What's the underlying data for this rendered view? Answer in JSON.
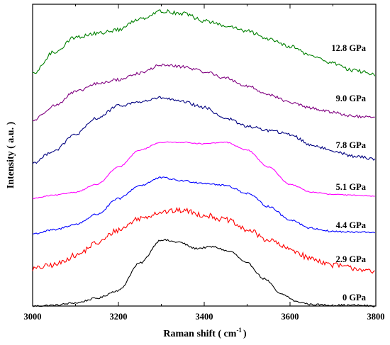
{
  "chart_data": {
    "type": "line",
    "title": "",
    "xlabel": "Raman shift ( cm",
    "xlabel_sup": "-1",
    "xlabel_tail": ")",
    "ylabel": "Intensity ( a.u. )",
    "xlim": [
      3000,
      3800
    ],
    "x_ticks": [
      3000,
      3200,
      3400,
      3600,
      3800
    ],
    "x_tick_labels": [
      "3000",
      "3200",
      "3400",
      "3600",
      "3800"
    ],
    "y_ticks_shown": false,
    "grid": false,
    "legend": "inline labels at right",
    "series": [
      {
        "name": "0 GPa",
        "color": "#000000",
        "noise": 0.012,
        "x": [
          3000,
          3050,
          3100,
          3150,
          3200,
          3250,
          3300,
          3340,
          3380,
          3420,
          3460,
          3500,
          3540,
          3580,
          3620,
          3650,
          3700,
          3750,
          3800
        ],
        "y": [
          0.0,
          0.01,
          0.04,
          0.1,
          0.2,
          0.55,
          0.85,
          0.82,
          0.74,
          0.76,
          0.7,
          0.55,
          0.35,
          0.15,
          0.05,
          0.02,
          0.01,
          0.01,
          0.0
        ]
      },
      {
        "name": "2.9 GPa",
        "color": "#ff0000",
        "noise": 0.035,
        "x": [
          3000,
          3050,
          3100,
          3150,
          3200,
          3250,
          3300,
          3350,
          3400,
          3450,
          3500,
          3550,
          3600,
          3650,
          3700,
          3750,
          3800
        ],
        "y": [
          0.05,
          0.1,
          0.22,
          0.38,
          0.55,
          0.7,
          0.78,
          0.8,
          0.74,
          0.68,
          0.55,
          0.42,
          0.3,
          0.18,
          0.1,
          0.06,
          0.0
        ]
      },
      {
        "name": "4.4 GPa",
        "color": "#0000ff",
        "noise": 0.012,
        "x": [
          3000,
          3050,
          3100,
          3150,
          3200,
          3250,
          3300,
          3350,
          3400,
          3450,
          3500,
          3550,
          3600,
          3650,
          3700,
          3750,
          3800
        ],
        "y": [
          0.0,
          0.05,
          0.12,
          0.25,
          0.45,
          0.62,
          0.72,
          0.68,
          0.65,
          0.62,
          0.52,
          0.35,
          0.18,
          0.07,
          0.03,
          0.02,
          0.02
        ]
      },
      {
        "name": "5.1 GPa",
        "color": "#ff00ff",
        "noise": 0.006,
        "x": [
          3000,
          3050,
          3100,
          3150,
          3200,
          3250,
          3300,
          3350,
          3400,
          3450,
          3500,
          3550,
          3600,
          3650,
          3700,
          3750,
          3800
        ],
        "y": [
          0.0,
          0.04,
          0.08,
          0.18,
          0.4,
          0.62,
          0.72,
          0.72,
          0.7,
          0.72,
          0.62,
          0.4,
          0.18,
          0.08,
          0.05,
          0.04,
          0.03
        ]
      },
      {
        "name": "7.8 GPa",
        "color": "#000080",
        "noise": 0.018,
        "x": [
          3000,
          3050,
          3100,
          3150,
          3200,
          3250,
          3300,
          3350,
          3400,
          3450,
          3500,
          3550,
          3600,
          3650,
          3700,
          3750,
          3800
        ],
        "y": [
          0.0,
          0.15,
          0.35,
          0.55,
          0.7,
          0.75,
          0.8,
          0.75,
          0.68,
          0.55,
          0.45,
          0.4,
          0.35,
          0.22,
          0.15,
          0.08,
          0.05
        ]
      },
      {
        "name": "9.0 GPa",
        "color": "#800080",
        "noise": 0.018,
        "x": [
          3000,
          3050,
          3100,
          3150,
          3200,
          3250,
          3300,
          3350,
          3400,
          3450,
          3500,
          3550,
          3600,
          3650,
          3700,
          3750,
          3800
        ],
        "y": [
          0.0,
          0.18,
          0.35,
          0.45,
          0.5,
          0.58,
          0.68,
          0.66,
          0.6,
          0.52,
          0.42,
          0.32,
          0.22,
          0.15,
          0.1,
          0.05,
          0.03
        ]
      },
      {
        "name": "12.8 GPa",
        "color": "#008000",
        "noise": 0.025,
        "x": [
          3000,
          3050,
          3100,
          3150,
          3200,
          3250,
          3300,
          3350,
          3400,
          3450,
          3500,
          3550,
          3600,
          3650,
          3700,
          3750,
          3800
        ],
        "y": [
          0.0,
          0.3,
          0.5,
          0.55,
          0.6,
          0.75,
          0.85,
          0.82,
          0.72,
          0.65,
          0.58,
          0.48,
          0.38,
          0.25,
          0.15,
          0.05,
          0.0
        ]
      }
    ]
  }
}
